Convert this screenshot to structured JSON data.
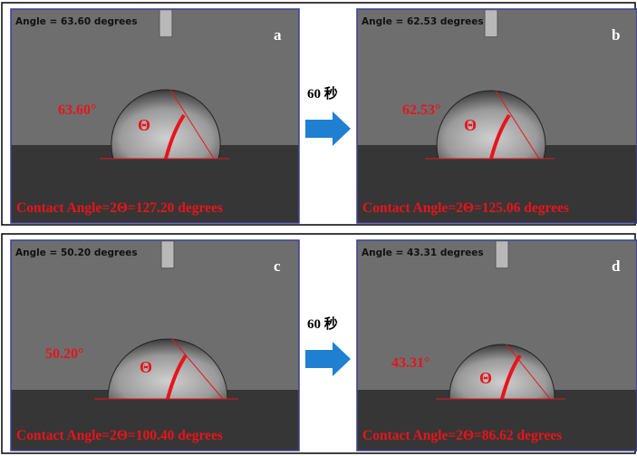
{
  "panels": [
    {
      "letter": "a",
      "angle_readout": "Angle = 63.60 degrees",
      "angle_label": "63.60°",
      "theta": "Θ",
      "contact_angle": "Contact Angle=2Θ=127.20 degrees"
    },
    {
      "letter": "b",
      "angle_readout": "Angle = 62.53 degrees",
      "angle_label": "62.53°",
      "theta": "Θ",
      "contact_angle": "Contact Angle=2Θ=125.06 degrees"
    },
    {
      "letter": "c",
      "angle_readout": "Angle = 50.20 degrees",
      "angle_label": "50.20°",
      "theta": "Θ",
      "contact_angle": "Contact Angle=2Θ=100.40 degrees"
    },
    {
      "letter": "d",
      "angle_readout": "Angle = 43.31 degrees",
      "angle_label": "43.31°",
      "theta": "Θ",
      "contact_angle": "Contact Angle=2Θ=86.62 degrees"
    }
  ],
  "arrows": [
    {
      "label": "60 秒"
    },
    {
      "label": "60 秒"
    }
  ]
}
